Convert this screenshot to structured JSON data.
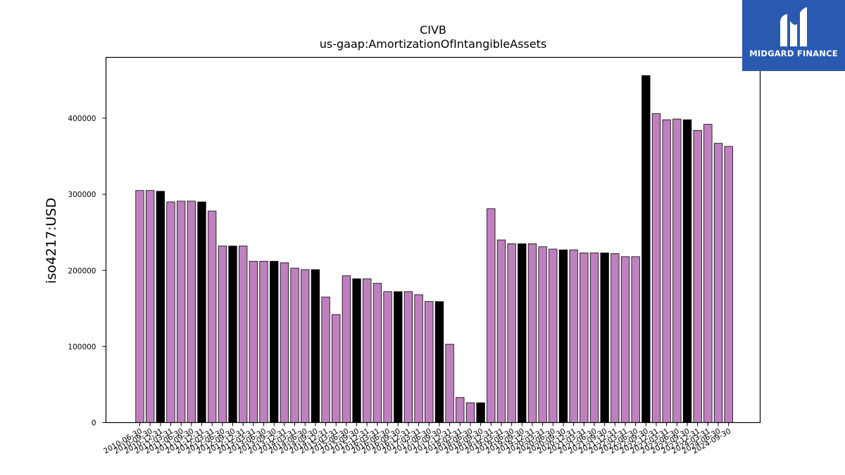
{
  "logo": {
    "text": "MIDGARD FINANCE",
    "bg": "#2a5ab0"
  },
  "colors": {
    "bar": "#bf80bf",
    "highlight": "#000000",
    "edge": "#000000"
  },
  "chart_data": {
    "type": "bar",
    "title": "CIVB",
    "subtitle": "us-gaap:AmortizationOfIntangibleAssets",
    "ylabel": "iso4217:USD",
    "xlabel": "",
    "ylim": [
      0,
      480000
    ],
    "yticks": [
      0,
      100000,
      200000,
      300000,
      400000
    ],
    "grid": false,
    "categories": [
      "2010-06-30",
      "2010-09-30",
      "2010-12-31",
      "2011-03-31",
      "2011-06-30",
      "2011-09-30",
      "2011-12-31",
      "2012-03-31",
      "2012-06-30",
      "2012-09-30",
      "2012-12-31",
      "2013-03-31",
      "2013-06-30",
      "2013-09-30",
      "2013-12-31",
      "2014-03-31",
      "2014-06-30",
      "2014-09-30",
      "2014-12-31",
      "2015-03-31",
      "2015-06-30",
      "2015-09-30",
      "2015-12-31",
      "2016-03-31",
      "2016-06-30",
      "2016-09-30",
      "2016-12-31",
      "2017-03-31",
      "2017-06-30",
      "2017-09-30",
      "2017-12-31",
      "2018-03-31",
      "2018-06-30",
      "2018-09-30",
      "2018-12-31",
      "2019-03-31",
      "2019-06-30",
      "2019-09-30",
      "2019-12-31",
      "2020-03-31",
      "2020-06-30",
      "2020-09-30",
      "2020-12-31",
      "2021-03-31",
      "2021-06-30",
      "2021-09-30",
      "2021-12-31",
      "2022-03-31",
      "2022-06-30",
      "2022-09-30",
      "2022-12-31",
      "2023-03-31",
      "2023-06-30",
      "2023-09-30",
      "2023-12-31",
      "2024-03-31",
      "2024-06-30",
      "2024-09-30"
    ],
    "values": [
      305000,
      305000,
      304000,
      290000,
      291000,
      291000,
      290000,
      278000,
      232000,
      232000,
      232000,
      212000,
      212000,
      212000,
      210000,
      203000,
      201000,
      201000,
      165000,
      142000,
      193000,
      189000,
      189000,
      183000,
      172000,
      172000,
      172000,
      168000,
      159000,
      159000,
      103000,
      33000,
      26000,
      26000,
      281000,
      240000,
      235000,
      235000,
      235000,
      231000,
      228000,
      227000,
      227000,
      223000,
      223000,
      223000,
      222000,
      218000,
      218000,
      456000,
      406000,
      398000,
      399000,
      398000,
      384000,
      392000,
      367000,
      363000
    ],
    "highlight": [
      false,
      false,
      true,
      false,
      false,
      false,
      true,
      false,
      false,
      true,
      false,
      false,
      false,
      true,
      false,
      false,
      false,
      true,
      false,
      false,
      false,
      true,
      false,
      false,
      false,
      true,
      false,
      false,
      false,
      true,
      false,
      false,
      false,
      true,
      false,
      false,
      false,
      true,
      false,
      false,
      false,
      true,
      false,
      false,
      false,
      true,
      false,
      false,
      false,
      true,
      false,
      false,
      false,
      true,
      false,
      false,
      false,
      false
    ]
  }
}
